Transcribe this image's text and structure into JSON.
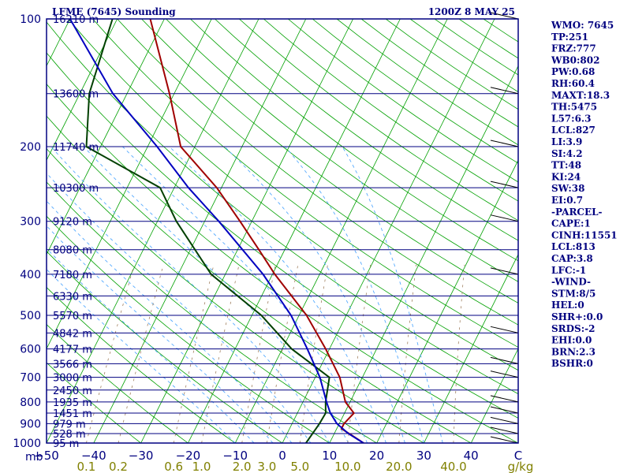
{
  "header": {
    "title": "LFME (7645) Sounding",
    "datetime": "1200Z  8 MAY 25"
  },
  "chart_data": {
    "type": "line",
    "title": "LFME (7645) Sounding",
    "subtitle": "1200Z  8 MAY 25",
    "ylabel": "mb",
    "yscale": "log-pressure",
    "ylim": [
      1000,
      100
    ],
    "xlim": [
      -50,
      50
    ],
    "pressure_ticks": [
      "100",
      "200",
      "300",
      "400",
      "500",
      "600",
      "700",
      "800",
      "900",
      "1000"
    ],
    "pressure_tick_values": [
      100,
      200,
      300,
      400,
      500,
      600,
      700,
      800,
      900,
      1000
    ],
    "temp_ticks": [
      "−50",
      "−40",
      "−30",
      "−20",
      "−10",
      "0",
      "10",
      "20",
      "30",
      "40",
      "C"
    ],
    "temp_tick_values": [
      -50,
      -40,
      -30,
      -20,
      -10,
      0,
      10,
      20,
      30,
      40
    ],
    "mixing_ticks": [
      "0.1",
      "0.2",
      "0.6",
      "1.0",
      "2.0",
      "3.0",
      "5.0",
      "10.0",
      "20.0",
      "40.0",
      "g/kg"
    ],
    "mixing_tick_values": [
      0.1,
      0.2,
      0.6,
      1.0,
      2.0,
      3.0,
      5.0,
      10.0,
      20.0,
      40.0
    ],
    "height_levels": [
      {
        "p": 100,
        "label": "16210 m"
      },
      {
        "p": 150,
        "label": "13600 m"
      },
      {
        "p": 200,
        "label": "11740 m"
      },
      {
        "p": 250,
        "label": "10300 m"
      },
      {
        "p": 300,
        "label": "9120 m"
      },
      {
        "p": 350,
        "label": "8080 m"
      },
      {
        "p": 400,
        "label": "7180 m"
      },
      {
        "p": 450,
        "label": "6330 m"
      },
      {
        "p": 500,
        "label": "5570 m"
      },
      {
        "p": 550,
        "label": "4842 m"
      },
      {
        "p": 600,
        "label": "4177 m"
      },
      {
        "p": 650,
        "label": "3566 m"
      },
      {
        "p": 700,
        "label": "3000 m"
      },
      {
        "p": 750,
        "label": "2450 m"
      },
      {
        "p": 800,
        "label": "1935 m"
      },
      {
        "p": 850,
        "label": "1451 m"
      },
      {
        "p": 900,
        "label": "979 m"
      },
      {
        "p": 950,
        "label": "528 m"
      },
      {
        "p": 1000,
        "label": "95 m"
      }
    ],
    "series": [
      {
        "points": [
          [
            1000,
            17.2
          ],
          [
            960,
            14.0
          ],
          [
            925,
            11.0
          ],
          [
            900,
            11.0
          ],
          [
            850,
            12.0
          ],
          [
            800,
            9.0
          ],
          [
            700,
            5.2
          ],
          [
            600,
            -0.8
          ],
          [
            500,
            -8.4
          ],
          [
            400,
            -19.5
          ],
          [
            350,
            -25.5
          ],
          [
            300,
            -32.5
          ],
          [
            250,
            -41.0
          ],
          [
            200,
            -53.0
          ],
          [
            150,
            -61.0
          ],
          [
            100,
            -73.0
          ]
        ]
      },
      {
        "points": [
          [
            1000,
            5.0
          ],
          [
            900,
            5.8
          ],
          [
            850,
            6.0
          ],
          [
            800,
            4.8
          ],
          [
            700,
            3.0
          ],
          [
            600,
            -8.0
          ],
          [
            500,
            -18.0
          ],
          [
            400,
            -33.0
          ],
          [
            300,
            -46.0
          ],
          [
            250,
            -53.0
          ],
          [
            200,
            -73.0
          ],
          [
            150,
            -78.0
          ],
          [
            100,
            -81.0
          ]
        ]
      },
      {
        "points": [
          [
            1000,
            17.2
          ],
          [
            950,
            13.0
          ],
          [
            900,
            9.5
          ],
          [
            850,
            7.0
          ],
          [
            800,
            5.0
          ],
          [
            700,
            1.0
          ],
          [
            600,
            -4.7
          ],
          [
            500,
            -11.7
          ],
          [
            400,
            -22.0
          ],
          [
            300,
            -37.0
          ],
          [
            250,
            -47.0
          ],
          [
            200,
            -58.0
          ],
          [
            150,
            -73.0
          ],
          [
            100,
            -90.0
          ]
        ]
      }
    ],
    "wind_barbs": [
      {
        "p": 100
      },
      {
        "p": 150
      },
      {
        "p": 200
      },
      {
        "p": 250
      },
      {
        "p": 300
      },
      {
        "p": 400
      },
      {
        "p": 550
      },
      {
        "p": 650
      },
      {
        "p": 700
      },
      {
        "p": 800
      },
      {
        "p": 850
      },
      {
        "p": 900
      },
      {
        "p": 950
      },
      {
        "p": 1000
      }
    ]
  },
  "indices": [
    "WMO: 7645",
    "TP:251",
    "FRZ:777",
    "WB0:802",
    "PW:0.68",
    "RH:60.4",
    "MAXT:18.3",
    "TH:5475",
    "L57:6.3",
    "LCL:827",
    "LI:3.9",
    "SI:4.2",
    "TT:48",
    "KI:24",
    "SW:38",
    "EI:0.7",
    "-PARCEL-",
    "CAPE:1",
    "CINH:11551",
    "LCL:813",
    "CAP:3.8",
    "LFC:-1",
    "-WIND-",
    "STM:8/5",
    "HEL:0",
    "SHR+:0.0",
    "SRDS:-2",
    "EHI:0.0",
    "BRN:2.3",
    "BSHR:0"
  ],
  "colors": {
    "frame": "#000080",
    "isobar": "#000080",
    "isotherm": "#00a000",
    "dry_adiabat": "#00a000",
    "moist_adiabat": "#55aaff",
    "mixing_ratio": "#a08060",
    "temperature": "#a00000",
    "dewpoint": "#004000",
    "parcel": "#0000c0",
    "barb": "#000000",
    "mixing_label": "#808000"
  }
}
